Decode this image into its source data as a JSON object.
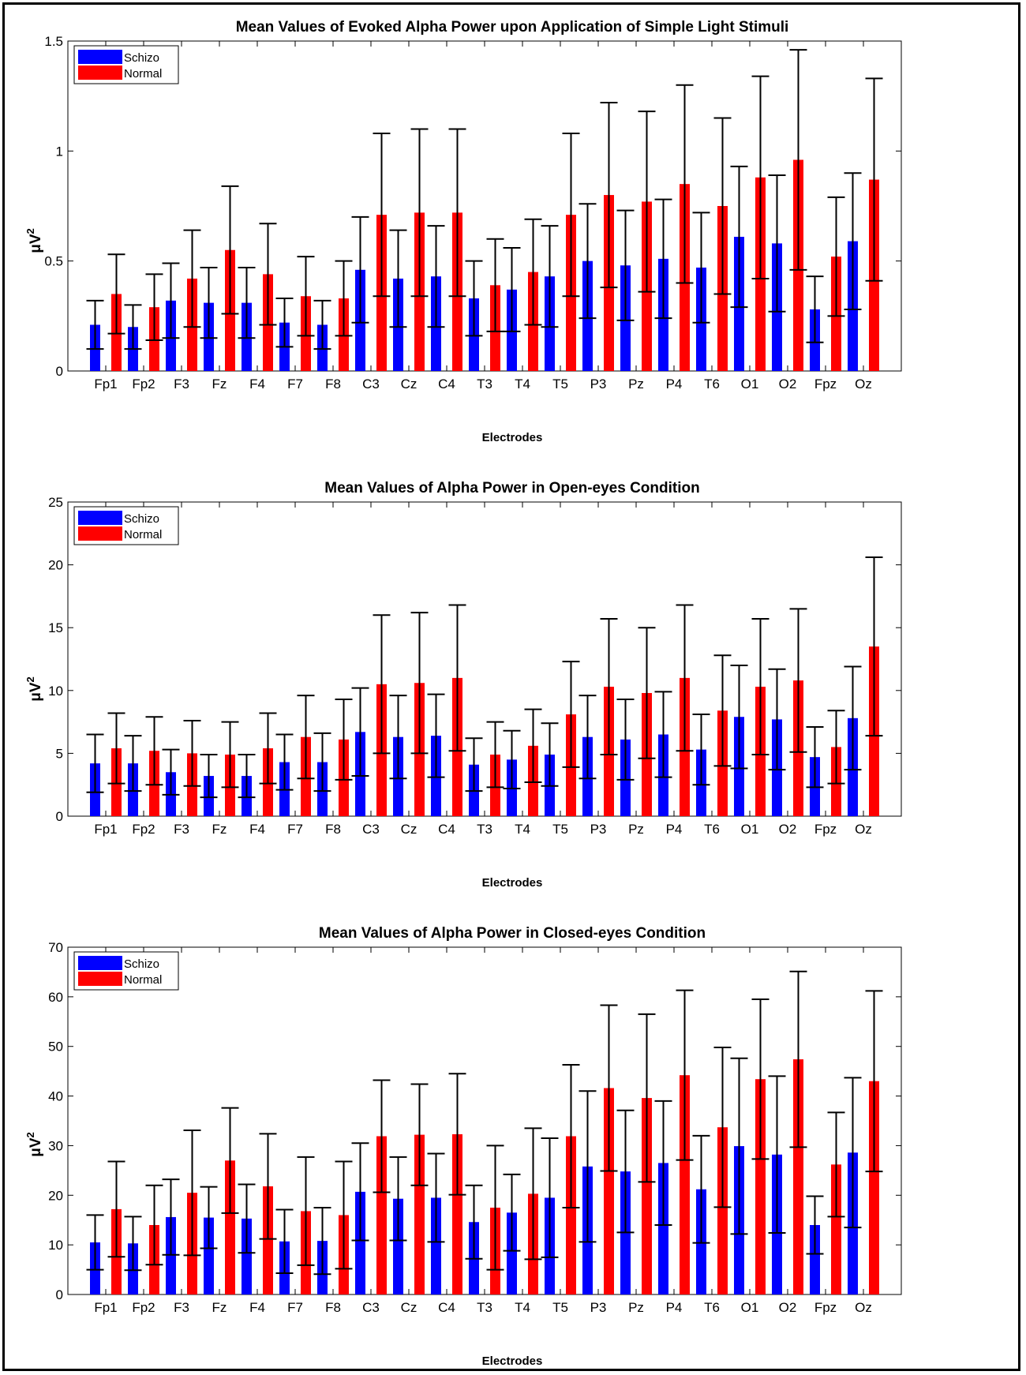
{
  "charts": [
    {
      "title": "Mean Values of Evoked Alpha Power upon Application of Simple Light Stimuli",
      "xlabel": "Electrodes",
      "ylabel": "μV",
      "ylabel_sup": "2",
      "legend": [
        "Schizo",
        "Normal"
      ]
    },
    {
      "title": "Mean Values of Alpha Power in Open-eyes Condition",
      "xlabel": "Electrodes",
      "ylabel": "μV",
      "ylabel_sup": "2",
      "legend": [
        "Schizo",
        "Normal"
      ]
    },
    {
      "title": "Mean Values of Alpha Power in Closed-eyes Condition",
      "xlabel": "Electrodes",
      "ylabel": "μV",
      "ylabel_sup": "2",
      "legend": [
        "Schizo",
        "Normal"
      ]
    }
  ],
  "chart_data": [
    {
      "type": "bar",
      "title": "Mean Values of Evoked Alpha Power upon Application of Simple Light Stimuli",
      "xlabel": "Electrodes",
      "ylabel": "μV²",
      "ylim": [
        0,
        1.5
      ],
      "yticks": [
        "0",
        "0.5",
        "1",
        "1.5"
      ],
      "ytick_values": [
        0,
        0.5,
        1,
        1.5
      ],
      "legend_position": "top-left",
      "categories": [
        "Fp1",
        "Fp2",
        "F3",
        "Fz",
        "F4",
        "F7",
        "F8",
        "C3",
        "Cz",
        "C4",
        "T3",
        "T4",
        "T5",
        "P3",
        "Pz",
        "P4",
        "T6",
        "O1",
        "O2",
        "Fpz",
        "Oz"
      ],
      "series": [
        {
          "name": "Schizo",
          "color": "#0000ff",
          "values": [
            0.21,
            0.2,
            0.32,
            0.31,
            0.31,
            0.22,
            0.21,
            0.46,
            0.42,
            0.43,
            0.33,
            0.37,
            0.43,
            0.5,
            0.48,
            0.51,
            0.47,
            0.61,
            0.58,
            0.28,
            0.59
          ],
          "err": [
            0.11,
            0.1,
            0.17,
            0.16,
            0.16,
            0.11,
            0.11,
            0.24,
            0.22,
            0.23,
            0.17,
            0.19,
            0.23,
            0.26,
            0.25,
            0.27,
            0.25,
            0.32,
            0.31,
            0.15,
            0.31
          ]
        },
        {
          "name": "Normal",
          "color": "#ff0000",
          "values": [
            0.35,
            0.29,
            0.42,
            0.55,
            0.44,
            0.34,
            0.33,
            0.71,
            0.72,
            0.72,
            0.39,
            0.45,
            0.71,
            0.8,
            0.77,
            0.85,
            0.75,
            0.88,
            0.96,
            0.52,
            0.87
          ],
          "err": [
            0.18,
            0.15,
            0.22,
            0.29,
            0.23,
            0.18,
            0.17,
            0.37,
            0.38,
            0.38,
            0.21,
            0.24,
            0.37,
            0.42,
            0.41,
            0.45,
            0.4,
            0.46,
            0.5,
            0.27,
            0.46
          ]
        }
      ]
    },
    {
      "type": "bar",
      "title": "Mean Values of Alpha Power in Open-eyes Condition",
      "xlabel": "Electrodes",
      "ylabel": "μV²",
      "ylim": [
        0,
        25
      ],
      "yticks": [
        "0",
        "5",
        "10",
        "15",
        "20",
        "25"
      ],
      "ytick_values": [
        0,
        5,
        10,
        15,
        20,
        25
      ],
      "legend_position": "top-left",
      "categories": [
        "Fp1",
        "Fp2",
        "F3",
        "Fz",
        "F4",
        "F7",
        "F8",
        "C3",
        "Cz",
        "C4",
        "T3",
        "T4",
        "T5",
        "P3",
        "Pz",
        "P4",
        "T6",
        "O1",
        "O2",
        "Fpz",
        "Oz"
      ],
      "series": [
        {
          "name": "Schizo",
          "color": "#0000ff",
          "values": [
            4.2,
            4.2,
            3.5,
            3.2,
            3.2,
            4.3,
            4.3,
            6.7,
            6.3,
            6.4,
            4.1,
            4.5,
            4.9,
            6.3,
            6.1,
            6.5,
            5.3,
            7.9,
            7.7,
            4.7,
            7.8
          ],
          "err": [
            2.3,
            2.2,
            1.8,
            1.7,
            1.7,
            2.2,
            2.3,
            3.5,
            3.3,
            3.3,
            2.1,
            2.3,
            2.5,
            3.3,
            3.2,
            3.4,
            2.8,
            4.1,
            4.0,
            2.4,
            4.1
          ]
        },
        {
          "name": "Normal",
          "color": "#ff0000",
          "values": [
            5.4,
            5.2,
            5.0,
            4.9,
            5.4,
            6.3,
            6.1,
            10.5,
            10.6,
            11.0,
            4.9,
            5.6,
            8.1,
            10.3,
            9.8,
            11.0,
            8.4,
            10.3,
            10.8,
            5.5,
            13.5
          ],
          "err": [
            2.8,
            2.7,
            2.6,
            2.6,
            2.8,
            3.3,
            3.2,
            5.5,
            5.6,
            5.8,
            2.6,
            2.9,
            4.2,
            5.4,
            5.2,
            5.8,
            4.4,
            5.4,
            5.7,
            2.9,
            7.1
          ]
        }
      ]
    },
    {
      "type": "bar",
      "title": "Mean Values of Alpha Power in Closed-eyes Condition",
      "xlabel": "Electrodes",
      "ylabel": "μV²",
      "ylim": [
        0,
        70
      ],
      "yticks": [
        "0",
        "10",
        "20",
        "30",
        "40",
        "50",
        "60",
        "70"
      ],
      "ytick_values": [
        0,
        10,
        20,
        30,
        40,
        50,
        60,
        70
      ],
      "legend_position": "top-left",
      "categories": [
        "Fp1",
        "Fp2",
        "F3",
        "Fz",
        "F4",
        "F7",
        "F8",
        "C3",
        "Cz",
        "C4",
        "T3",
        "T4",
        "T5",
        "P3",
        "Pz",
        "P4",
        "T6",
        "O1",
        "O2",
        "Fpz",
        "Oz"
      ],
      "series": [
        {
          "name": "Schizo",
          "color": "#0000ff",
          "values": [
            10.5,
            10.3,
            15.6,
            15.5,
            15.3,
            10.7,
            10.8,
            20.7,
            19.3,
            19.5,
            14.6,
            16.5,
            19.5,
            25.8,
            24.8,
            26.5,
            21.2,
            29.9,
            28.2,
            14.0,
            28.6
          ],
          "err": [
            5.5,
            5.4,
            7.6,
            6.2,
            6.9,
            6.4,
            6.7,
            9.8,
            8.4,
            8.9,
            7.4,
            7.7,
            12.0,
            15.2,
            12.3,
            12.5,
            10.8,
            17.7,
            15.8,
            5.8,
            15.1
          ]
        },
        {
          "name": "Normal",
          "color": "#ff0000",
          "values": [
            17.2,
            14.0,
            20.5,
            27.0,
            21.8,
            16.8,
            16.0,
            31.9,
            32.2,
            32.3,
            17.5,
            20.3,
            31.9,
            41.6,
            39.6,
            44.2,
            33.7,
            43.4,
            47.4,
            26.2,
            43.0
          ],
          "err": [
            9.6,
            8.0,
            12.6,
            10.6,
            10.6,
            10.9,
            10.8,
            11.3,
            10.2,
            12.2,
            12.5,
            13.2,
            14.4,
            16.7,
            16.9,
            17.1,
            16.1,
            16.1,
            17.7,
            10.5,
            18.2
          ]
        }
      ]
    }
  ]
}
